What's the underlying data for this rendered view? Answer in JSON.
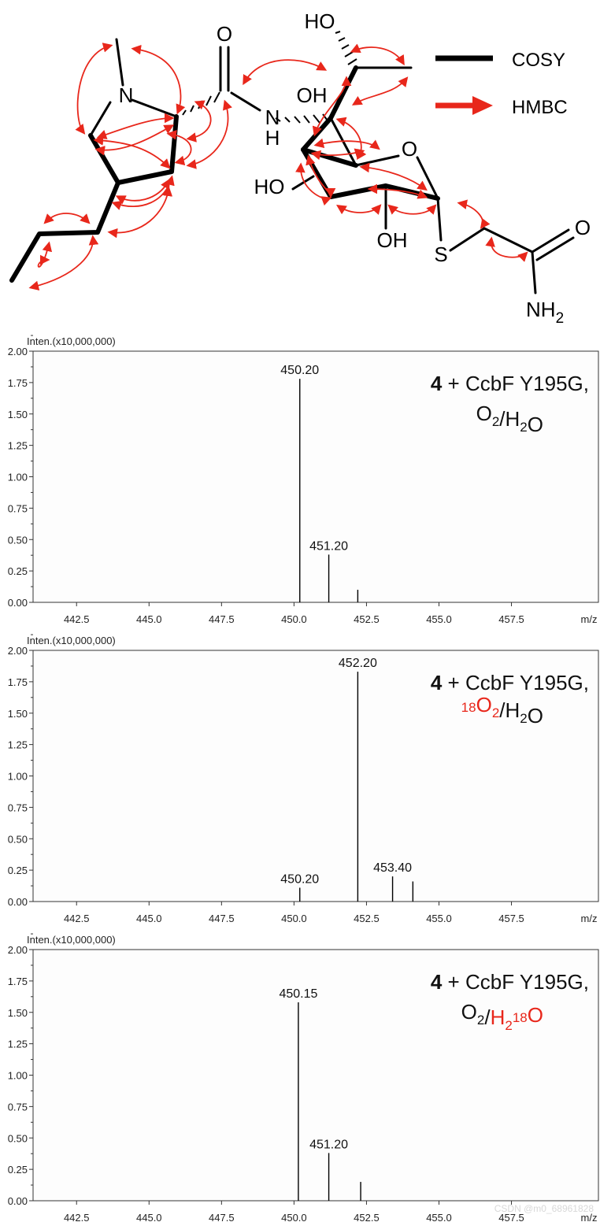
{
  "structure": {
    "atoms": {
      "o_amide": "O",
      "n_ring": "N",
      "nh_n": "N",
      "nh_h": "H",
      "ho_top": "HO",
      "oh_upper": "OH",
      "ring_o": "O",
      "ho_left": "HO",
      "oh_bottom": "OH",
      "s": "S",
      "o_terminal": "O",
      "nh2_n": "NH",
      "nh2_sub": "2"
    },
    "legend": {
      "cosy": "COSY",
      "hmbc": "HMBC",
      "cosy_color": "#000000",
      "hmbc_color": "#e8271b"
    }
  },
  "accent_color": "#e8271b",
  "chart_data": [
    {
      "type": "bar",
      "subtype": "mass-spectrum",
      "y_axis_title": "Inten.(x10,000,000)",
      "x_unit": "m/z",
      "xlim": [
        441.0,
        460.5
      ],
      "ylim": [
        0,
        2.0
      ],
      "x_ticks": [
        "442.5",
        "445.0",
        "447.5",
        "450.0",
        "452.5",
        "455.0",
        "457.5"
      ],
      "y_ticks": [
        "0.00",
        "0.25",
        "0.50",
        "0.75",
        "1.00",
        "1.25",
        "1.50",
        "1.75",
        "2.00"
      ],
      "condition": {
        "bold": "4",
        "enzyme": " + CcbF Y195G,",
        "line2": [
          {
            "t": "O",
            "c": "#111"
          },
          {
            "t": "2",
            "c": "#111",
            "sub": true
          },
          {
            "t": "/H",
            "c": "#111"
          },
          {
            "t": "2",
            "c": "#111",
            "sub": true
          },
          {
            "t": "O",
            "c": "#111"
          }
        ]
      },
      "peaks": [
        {
          "mz": 450.2,
          "intensity": 1.78,
          "label": "450.20"
        },
        {
          "mz": 451.2,
          "intensity": 0.38,
          "label": "451.20"
        },
        {
          "mz": 452.2,
          "intensity": 0.1,
          "label": ""
        }
      ]
    },
    {
      "type": "bar",
      "subtype": "mass-spectrum",
      "y_axis_title": "Inten.(x10,000,000)",
      "x_unit": "m/z",
      "xlim": [
        441.0,
        460.5
      ],
      "ylim": [
        0,
        2.0
      ],
      "x_ticks": [
        "442.5",
        "445.0",
        "447.5",
        "450.0",
        "452.5",
        "455.0",
        "457.5"
      ],
      "y_ticks": [
        "0.00",
        "0.25",
        "0.50",
        "0.75",
        "1.00",
        "1.25",
        "1.50",
        "1.75",
        "2.00"
      ],
      "condition": {
        "bold": "4",
        "enzyme": " + CcbF Y195G,",
        "line2": [
          {
            "t": "18",
            "c": "#e8271b",
            "sup": true
          },
          {
            "t": "O",
            "c": "#e8271b"
          },
          {
            "t": "2",
            "c": "#e8271b",
            "sub": true
          },
          {
            "t": "/H",
            "c": "#111"
          },
          {
            "t": "2",
            "c": "#111",
            "sub": true
          },
          {
            "t": "O",
            "c": "#111"
          }
        ]
      },
      "peaks": [
        {
          "mz": 450.2,
          "intensity": 0.11,
          "label": "450.20"
        },
        {
          "mz": 452.2,
          "intensity": 1.83,
          "label": "452.20"
        },
        {
          "mz": 453.4,
          "intensity": 0.2,
          "label": "453.40"
        },
        {
          "mz": 454.1,
          "intensity": 0.16,
          "label": ""
        }
      ]
    },
    {
      "type": "bar",
      "subtype": "mass-spectrum",
      "y_axis_title": "Inten.(x10,000,000)",
      "x_unit": "m/z",
      "xlim": [
        441.0,
        460.5
      ],
      "ylim": [
        0,
        2.0
      ],
      "x_ticks": [
        "442.5",
        "445.0",
        "447.5",
        "450.0",
        "452.5",
        "455.0",
        "457.5"
      ],
      "y_ticks": [
        "0.00",
        "0.25",
        "0.50",
        "0.75",
        "1.00",
        "1.25",
        "1.50",
        "1.75",
        "2.00"
      ],
      "condition": {
        "bold": "4",
        "enzyme": " + CcbF Y195G,",
        "line2": [
          {
            "t": "O",
            "c": "#111"
          },
          {
            "t": "2",
            "c": "#111",
            "sub": true
          },
          {
            "t": "/",
            "c": "#111"
          },
          {
            "t": "H",
            "c": "#e8271b"
          },
          {
            "t": "2",
            "c": "#e8271b",
            "sub": true
          },
          {
            "t": "18",
            "c": "#e8271b",
            "sup": true
          },
          {
            "t": "O",
            "c": "#e8271b"
          }
        ]
      },
      "peaks": [
        {
          "mz": 450.15,
          "intensity": 1.58,
          "label": "450.15"
        },
        {
          "mz": 451.2,
          "intensity": 0.38,
          "label": "451.20"
        },
        {
          "mz": 452.3,
          "intensity": 0.15,
          "label": ""
        }
      ]
    }
  ],
  "watermark": "CSDN @m0_68961828"
}
